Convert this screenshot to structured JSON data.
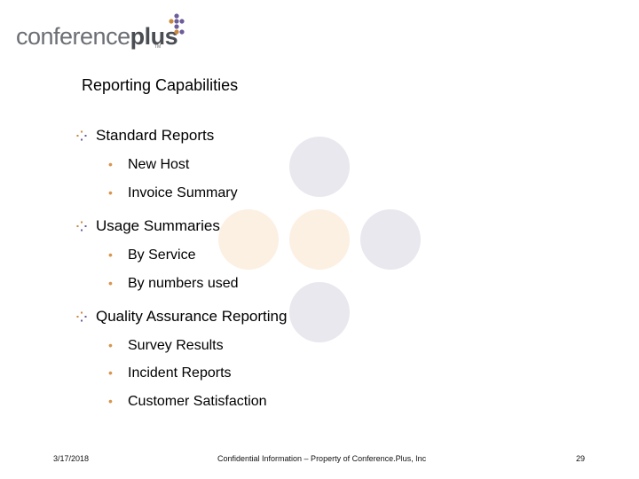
{
  "logo": {
    "text_light": "conference",
    "text_bold": "plus",
    "tm": "TM"
  },
  "title": "Reporting Capabilities",
  "sections": [
    {
      "label": "Standard Reports",
      "items": [
        "New Host",
        "Invoice Summary"
      ]
    },
    {
      "label": "Usage Summaries",
      "items": [
        "By Service",
        "By numbers used"
      ]
    },
    {
      "label": "Quality Assurance Reporting",
      "items": [
        "Survey Results",
        "Incident Reports",
        "Customer Satisfaction"
      ]
    }
  ],
  "footer": {
    "date": "3/17/2018",
    "confidential": "Confidential Information – Property of Conference.Plus, Inc",
    "page": "29"
  },
  "colors": {
    "accent_peach": "#fcf0e3",
    "accent_gray": "#e9e8ee",
    "bullet_orange": "#d7954d",
    "logo_purple": "#6c5c9a"
  },
  "icons": {
    "section_marker": "four-dot-diamond-icon",
    "sub_bullet": "orange-dot"
  }
}
